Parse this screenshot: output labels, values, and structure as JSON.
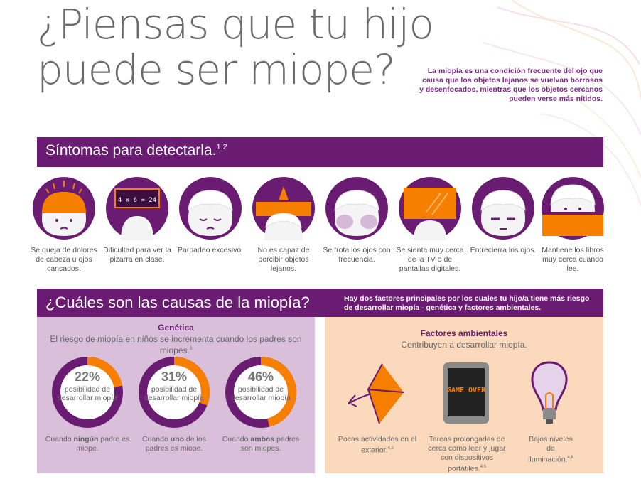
{
  "header": {
    "title_line1": "¿Piensas que tu hijo",
    "title_line2": "puede ser miope?",
    "intro": "La miopía es una condición frecuente del ojo que causa que los objetos lejanos se vuelvan borrosos y desenfocados, mientras que los objetos cercanos pueden verse más nítidos."
  },
  "symptoms": {
    "heading": "Síntomas para detectarla.",
    "heading_sup": "1,2",
    "board_text": "4 x 6 = 24",
    "items": [
      {
        "label": "Se queja de dolores de cabeza u ojos cansados.",
        "icon": "headache-child-icon"
      },
      {
        "label": "Dificultad para ver la pizarra en clase.",
        "icon": "chalkboard-icon"
      },
      {
        "label": "Parpadeo excesivo.",
        "icon": "blinking-child-icon"
      },
      {
        "label": "No es capaz de percibir objetos lejanos.",
        "icon": "distant-objects-child-icon"
      },
      {
        "label": "Se frota los ojos con frecuencia.",
        "icon": "rubbing-eyes-child-icon"
      },
      {
        "label": "Se sienta muy cerca de la TV o de pantallas digitales.",
        "icon": "tv-screen-icon"
      },
      {
        "label": "Entrecierra los ojos.",
        "icon": "squinting-child-icon"
      },
      {
        "label": "Mantiene los libros muy cerca cuando lee.",
        "icon": "book-close-child-icon"
      }
    ]
  },
  "causes": {
    "heading": "¿Cuáles son las causas de la miopía?",
    "note": "Hay dos factores principales por los cuales tu hijo/a tiene más riesgo de desarrollar miopía - genética y factores ambientales.",
    "genetics": {
      "title": "Genética",
      "subtitle": "El riesgo de miopía en niños se incrementa cuando los padres son miopes.",
      "subtitle_sup": "3",
      "stats": [
        {
          "percent": "22%",
          "value": 22,
          "label": "posibilidad de desarrollar miopía",
          "cap_pre": "Cuando ",
          "cap_bold": "ningún",
          "cap_post": " padre es miope."
        },
        {
          "percent": "31%",
          "value": 31,
          "label": "posibilidad de desarrollar miopía",
          "cap_pre": "Cuando ",
          "cap_bold": "uno",
          "cap_post": " de los padres es miope."
        },
        {
          "percent": "46%",
          "value": 46,
          "label": "posibilidad de desarrollar miopía",
          "cap_pre": "Cuando ",
          "cap_bold": "ambos",
          "cap_post": " padres son miopes."
        }
      ]
    },
    "environment": {
      "title": "Factores ambientales",
      "subtitle": "Contribuyen a desarrollar miopía.",
      "game_over": "GAME OVER",
      "items": [
        {
          "label": "Pocas actividades en el exterior.",
          "sup": "4,5",
          "icon": "kite-icon"
        },
        {
          "label": "Tareas prolongadas de cerca como leer y jugar con dispositivos portátiles.",
          "sup": "4,6",
          "icon": "tablet-game-icon"
        },
        {
          "label": "Bajos niveles de iluminación.",
          "sup": "4,6",
          "icon": "light-bulb-icon"
        }
      ]
    }
  },
  "colors": {
    "purple": "#6a1b72",
    "orange": "#f77f00",
    "lilac": "#d9bfd9",
    "peach": "#fbd9bc"
  }
}
